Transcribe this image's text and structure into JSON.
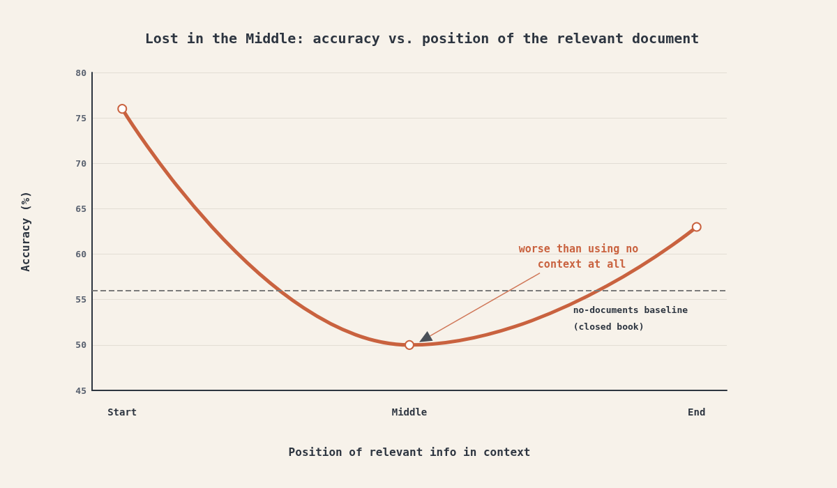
{
  "chart_data": {
    "type": "line",
    "title": "Lost in the Middle: accuracy vs. position of the relevant document",
    "xlabel": "Position of relevant info in context",
    "ylabel": "Accuracy (%)",
    "categories": [
      "Start",
      "Middle",
      "End"
    ],
    "series": [
      {
        "color": "#c9623f",
        "values": [
          76,
          50,
          63
        ]
      }
    ],
    "ylim": [
      45,
      80
    ],
    "yticks": [
      45,
      50,
      55,
      60,
      65,
      70,
      75,
      80
    ],
    "grid": "y",
    "marker": "circle",
    "line_style": "solid",
    "ref_lines": [
      {
        "axis": "y",
        "value": 56,
        "label": "no-documents baseline (closed book)",
        "color": "#7a7a7a",
        "line_style": "dashed"
      }
    ],
    "annotations": [
      "worse than using no context at all"
    ]
  }
}
